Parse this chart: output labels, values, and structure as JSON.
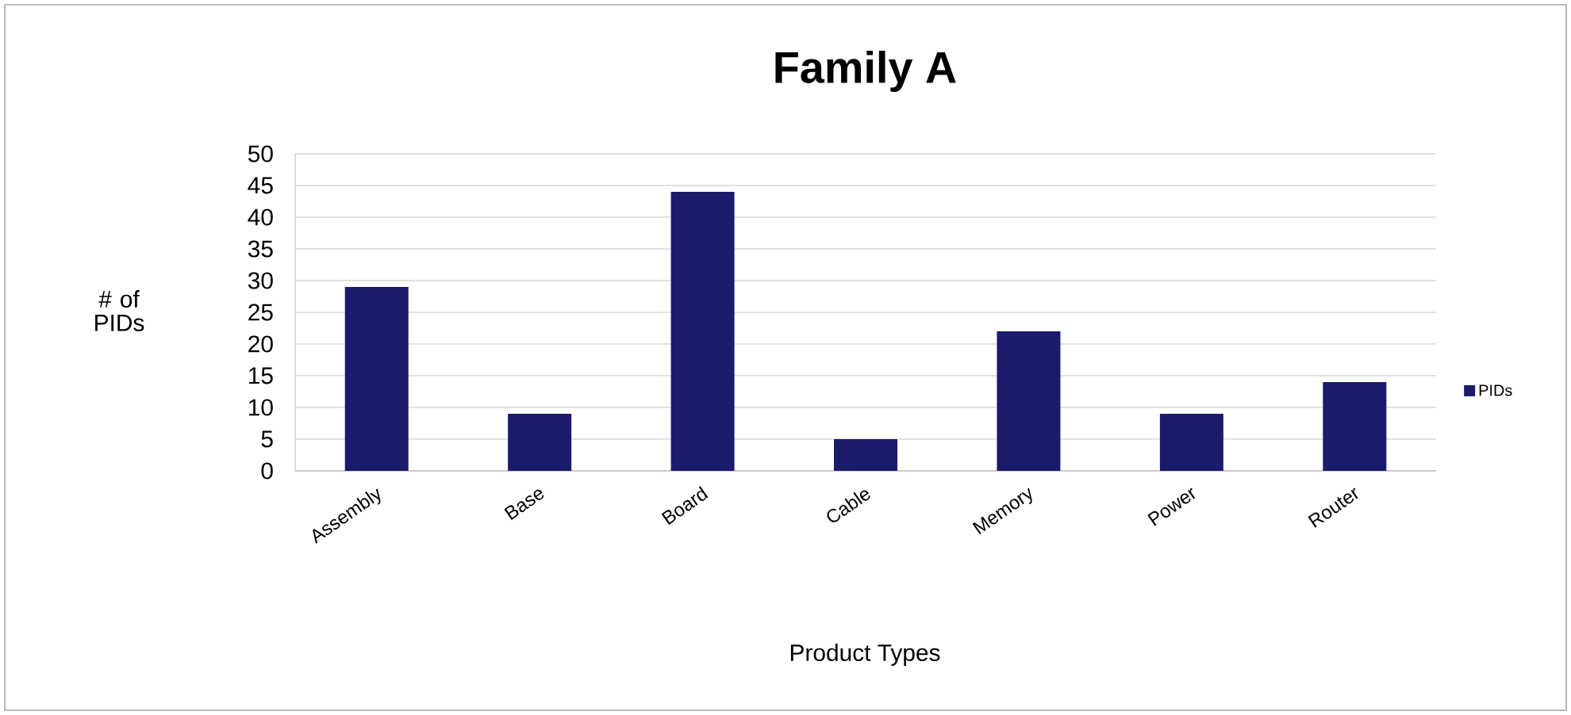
{
  "chart_data": {
    "type": "bar",
    "title": "Family A",
    "xlabel": "Product Types",
    "ylabel": "# of PIDs",
    "categories": [
      "Assembly",
      "Base",
      "Board",
      "Cable",
      "Memory",
      "Power",
      "Router"
    ],
    "series": [
      {
        "name": "PIDs",
        "color": "#1b1b6b",
        "values": [
          29,
          9,
          44,
          5,
          22,
          9,
          14
        ]
      }
    ],
    "ylim": [
      0,
      50
    ],
    "yticks": [
      0,
      5,
      10,
      15,
      20,
      25,
      30,
      35,
      40,
      45,
      50
    ],
    "grid": "y",
    "legend": "right"
  }
}
